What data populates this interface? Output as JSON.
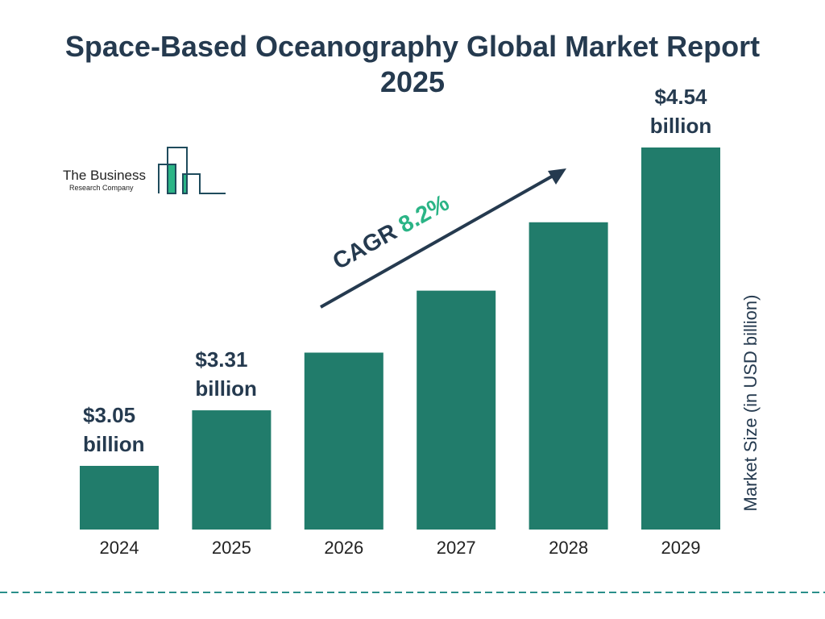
{
  "chart_data": {
    "type": "bar",
    "title": "Space-Based Oceanography Global Market Report 2025",
    "categories": [
      "2024",
      "2025",
      "2026",
      "2027",
      "2028",
      "2029"
    ],
    "values": [
      3.05,
      3.31,
      3.58,
      3.87,
      4.19,
      4.54
    ],
    "data_labels": [
      {
        "index": 0,
        "line1": "$3.05",
        "line2": "billion"
      },
      {
        "index": 1,
        "line1": "$3.31",
        "line2": "billion"
      },
      {
        "index": 5,
        "line1": "$4.54",
        "line2": "billion"
      }
    ],
    "ylabel": "Market Size (in USD billion)",
    "xlabel": "",
    "grid": false,
    "annotation": {
      "prefix": "CAGR ",
      "value": "8.2%"
    },
    "colors": {
      "bar": "#217c6b",
      "text": "#253a4f",
      "accent": "#2bb486",
      "divider": "#2a8f8a"
    }
  },
  "logo": {
    "line1": "The Business",
    "line2": "Research Company"
  }
}
